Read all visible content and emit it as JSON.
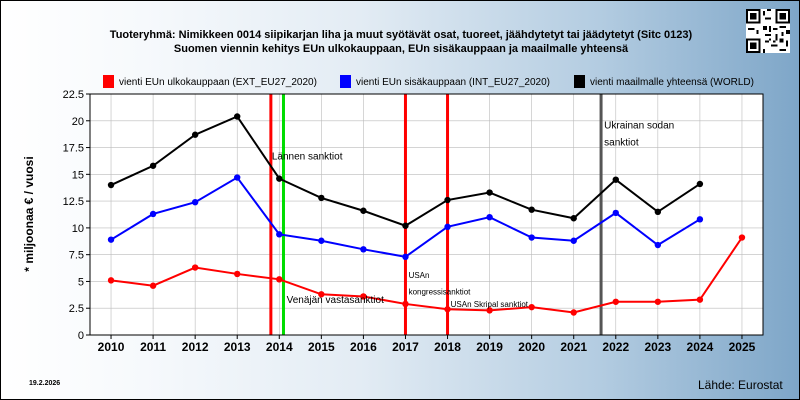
{
  "header": {
    "line1": "Tuoteryhmä: Nimikkeen 0014 siipikarjan liha ja muut syötävät osat, tuoreet, jäähdytetyt tai jäädytetyt (Sitc 0123)",
    "line2": "Suomen viennin kehitys EUn ulkokauppaan, EUn sisäkauppaan ja maailmalle yhteensä"
  },
  "qr_icon": "qr-code-icon",
  "footer": {
    "date": "19.2.2026",
    "source": "Lähde: Eurostat"
  },
  "chart_data": {
    "type": "line",
    "ylabel": "* miljoonaa € / vuosi",
    "ylim": [
      0,
      22.5
    ],
    "yticks": [
      "0",
      "2.5",
      "5",
      "7.5",
      "10",
      "12.5",
      "15",
      "17.5",
      "20",
      "22.5"
    ],
    "x": [
      "2010",
      "2011",
      "2012",
      "2013",
      "2014",
      "2015",
      "2016",
      "2017",
      "2018",
      "2019",
      "2020",
      "2021",
      "2022",
      "2023",
      "2024",
      "2025"
    ],
    "grid": true,
    "legend_position": "top",
    "series": [
      {
        "name": "vienti EUn ulkokauppaan (EXT_EU27_2020)",
        "color": "#ff0000",
        "values": [
          5.1,
          4.6,
          6.3,
          5.7,
          5.2,
          3.8,
          3.6,
          2.9,
          2.4,
          2.3,
          2.6,
          2.1,
          3.1,
          3.1,
          3.3,
          9.1
        ]
      },
      {
        "name": "vienti EUn sisäkauppaan (INT_EU27_2020)",
        "color": "#0000ff",
        "values": [
          8.9,
          11.3,
          12.4,
          14.7,
          9.4,
          8.8,
          8.0,
          7.3,
          10.1,
          11.0,
          9.1,
          8.8,
          11.4,
          8.4,
          10.8,
          null
        ]
      },
      {
        "name": "vienti maailmalle yhteensä (WORLD)",
        "color": "#000000",
        "values": [
          14.0,
          15.8,
          18.7,
          20.4,
          14.6,
          12.8,
          11.6,
          10.2,
          12.6,
          13.3,
          11.7,
          10.9,
          14.5,
          11.5,
          14.1,
          null
        ]
      }
    ],
    "markers": [
      {
        "x": 2013.8,
        "color": "#ff0000"
      },
      {
        "x": 2014.1,
        "color": "#00dd00"
      },
      {
        "x": 2017.0,
        "color": "#ff0000"
      },
      {
        "x": 2018.0,
        "color": "#ff0000"
      },
      {
        "x": 2021.65,
        "color": "#555555"
      }
    ],
    "annotations": [
      {
        "text": "Lännen sanktiot",
        "x": 2013.8,
        "y": 16.4,
        "size": "normal"
      },
      {
        "text": "Venäjän vastasanktiot",
        "x": 2014.15,
        "y": 3.0,
        "size": "normal"
      },
      {
        "text": "USAn",
        "x": 2017.05,
        "y": 5.3,
        "size": "small"
      },
      {
        "text": "kongressisanktiot",
        "x": 2017.05,
        "y": 3.8,
        "size": "small"
      },
      {
        "text": "USAn Skripal sanktiot",
        "x": 2018.05,
        "y": 2.6,
        "size": "small"
      },
      {
        "text": "Ukrainan sodan",
        "x": 2021.7,
        "y": 19.3,
        "size": "normal"
      },
      {
        "text": "sanktiot",
        "x": 2021.7,
        "y": 17.7,
        "size": "normal"
      }
    ]
  }
}
